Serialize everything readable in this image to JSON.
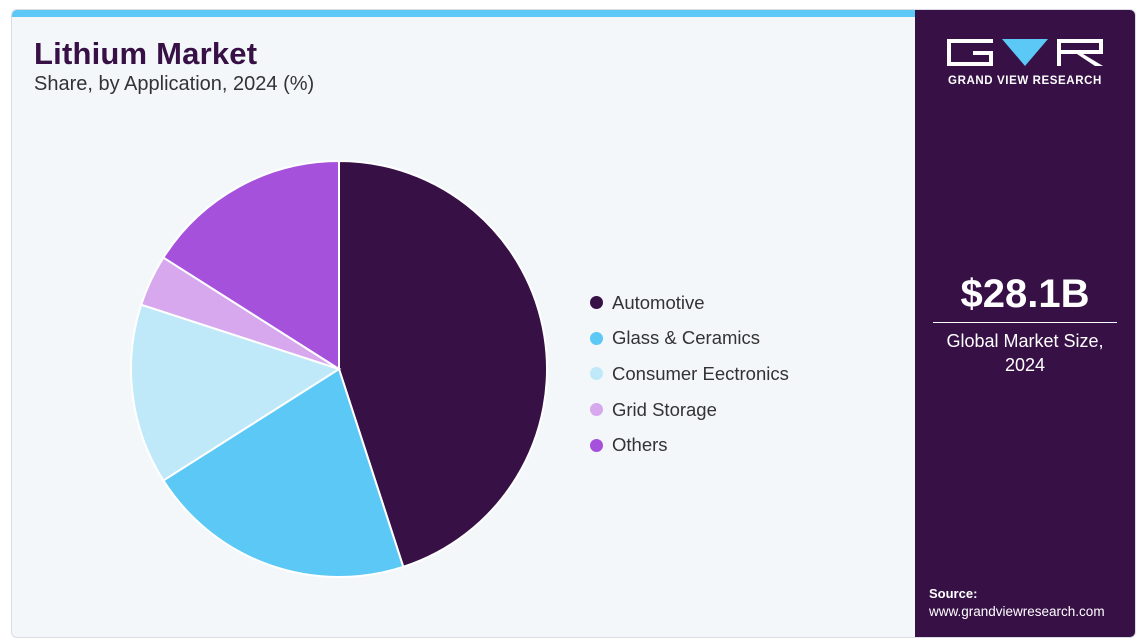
{
  "header": {
    "title": "Lithium Market",
    "subtitle": "Share, by Application, 2024 (%)"
  },
  "colors": {
    "accent_bar": "#5bc8f5",
    "panel_bg": "#371046",
    "card_bg": "#f3f7fa"
  },
  "chart_data": {
    "type": "pie",
    "title": "Lithium Market",
    "subtitle": "Share, by Application, 2024 (%)",
    "categories": [
      "Automotive",
      "Glass & Ceramics",
      "Consumer Eectronics",
      "Grid Storage",
      "Others"
    ],
    "values": [
      45,
      21,
      14,
      4,
      16
    ],
    "colors": [
      "#371046",
      "#5bc8f5",
      "#bfe9f9",
      "#d7a8ee",
      "#a551dc"
    ],
    "legend_position": "right",
    "start": "top, clockwise"
  },
  "side_panel": {
    "brand_icon": "gvr-logo",
    "brand_name": "GRAND VIEW RESEARCH",
    "market_size": "$28.1B",
    "market_label_line1": "Global Market Size,",
    "market_label_line2": "2024",
    "source_label": "Source:",
    "source_url": "www.grandviewresearch.com"
  }
}
